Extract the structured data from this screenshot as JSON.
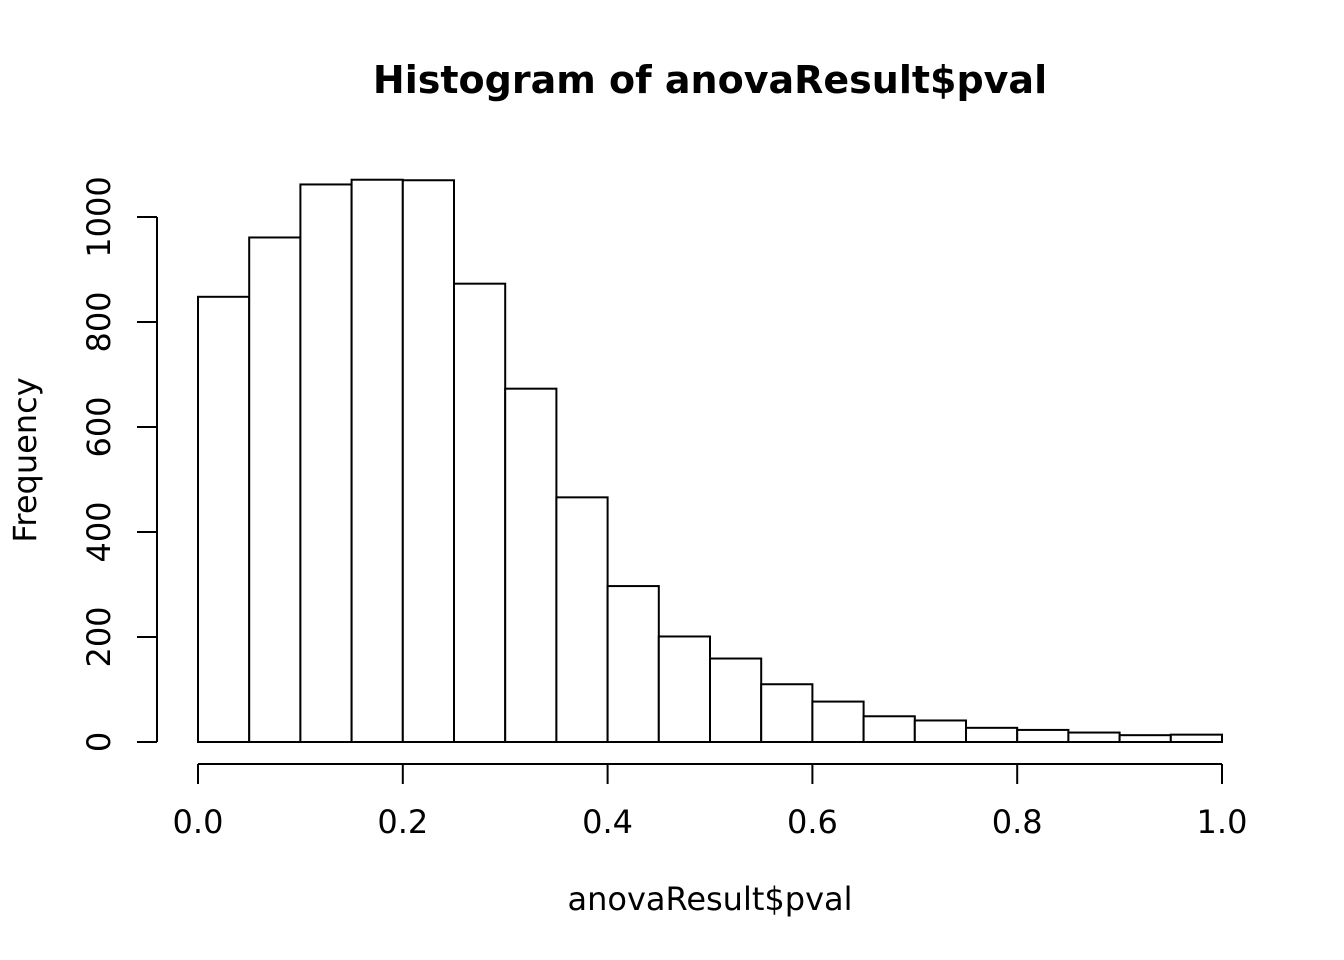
{
  "chart_data": {
    "type": "bar",
    "title": "Histogram of anovaResult$pval",
    "xlabel": "anovaResult$pval",
    "ylabel": "Frequency",
    "bin_edges": [
      0.0,
      0.05,
      0.1,
      0.15,
      0.2,
      0.25,
      0.3,
      0.35,
      0.4,
      0.45,
      0.5,
      0.55,
      0.6,
      0.65,
      0.7,
      0.75,
      0.8,
      0.85,
      0.9,
      0.95,
      1.0
    ],
    "values": [
      848,
      961,
      1062,
      1071,
      1070,
      873,
      673,
      466,
      297,
      201,
      159,
      110,
      77,
      49,
      41,
      27,
      23,
      18,
      13,
      14
    ],
    "xlim": [
      0.0,
      1.0
    ],
    "ylim": [
      0,
      1000
    ],
    "x_ticks": [
      0.0,
      0.2,
      0.4,
      0.6,
      0.8,
      1.0
    ],
    "x_tick_labels": [
      "0.0",
      "0.2",
      "0.4",
      "0.6",
      "0.8",
      "1.0"
    ],
    "y_ticks": [
      0,
      200,
      400,
      600,
      800,
      1000
    ],
    "y_tick_labels": [
      "0",
      "200",
      "400",
      "600",
      "800",
      "1000"
    ],
    "grid": false,
    "colors": {
      "bar_fill": "#ffffff",
      "bar_stroke": "#000000"
    }
  }
}
